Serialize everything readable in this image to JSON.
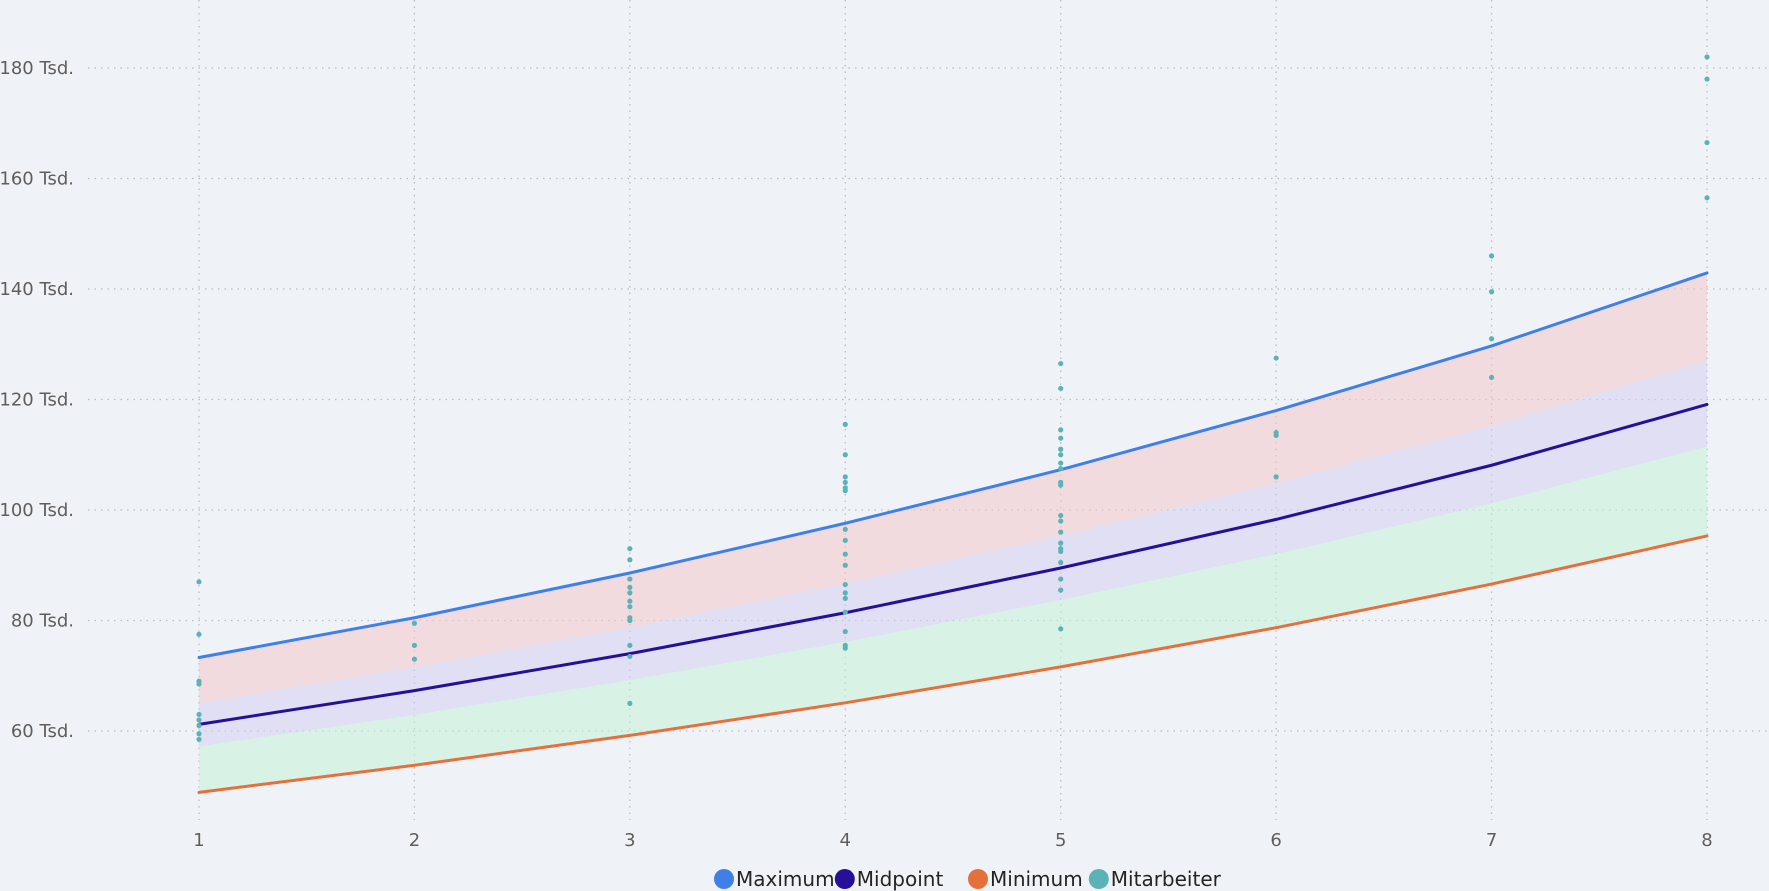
{
  "chart_data": {
    "type": "line",
    "x": [
      1,
      2,
      3,
      4,
      5,
      6,
      7,
      8
    ],
    "xlim": [
      0.5,
      8.3
    ],
    "ylim": [
      42000,
      190000
    ],
    "yticks": [
      60000,
      80000,
      100000,
      120000,
      140000,
      160000,
      180000
    ],
    "ytick_labels": [
      "60 Tsd.",
      "80 Tsd.",
      "100 Tsd.",
      "120 Tsd.",
      "140 Tsd.",
      "160 Tsd.",
      "180 Tsd."
    ],
    "xtick_labels": [
      "1",
      "2",
      "3",
      "4",
      "5",
      "6",
      "7",
      "8"
    ],
    "grid": true,
    "legend_position": "bottom-center",
    "series": [
      {
        "name": "Maximum",
        "kind": "line",
        "color": "#3f80e7",
        "values": [
          73300,
          80500,
          88600,
          97600,
          107300,
          118000,
          129700,
          142900
        ]
      },
      {
        "name": "Midpoint",
        "kind": "line",
        "color": "#260f99",
        "values": [
          61200,
          67300,
          74000,
          81400,
          89500,
          98300,
          108100,
          119100
        ]
      },
      {
        "name": "Minimum",
        "kind": "line",
        "color": "#e4703c",
        "values": [
          48900,
          53800,
          59200,
          65100,
          71600,
          78700,
          86600,
          95300
        ]
      },
      {
        "name": "Mitarbeiter",
        "kind": "scatter",
        "color": "#5cb3b7",
        "points": [
          [
            1,
            87000
          ],
          [
            1,
            77500
          ],
          [
            1,
            69000
          ],
          [
            1,
            68500
          ],
          [
            1,
            63000
          ],
          [
            1,
            62000
          ],
          [
            1,
            61000
          ],
          [
            1,
            59500
          ],
          [
            1,
            58500
          ],
          [
            2,
            79500
          ],
          [
            2,
            75500
          ],
          [
            2,
            73000
          ],
          [
            3,
            93000
          ],
          [
            3,
            91000
          ],
          [
            3,
            87500
          ],
          [
            3,
            86000
          ],
          [
            3,
            85000
          ],
          [
            3,
            83500
          ],
          [
            3,
            82500
          ],
          [
            3,
            80500
          ],
          [
            3,
            80000
          ],
          [
            3,
            75500
          ],
          [
            3,
            73500
          ],
          [
            3,
            65000
          ],
          [
            4,
            115500
          ],
          [
            4,
            110000
          ],
          [
            4,
            106000
          ],
          [
            4,
            105000
          ],
          [
            4,
            104000
          ],
          [
            4,
            103500
          ],
          [
            4,
            96500
          ],
          [
            4,
            94500
          ],
          [
            4,
            92000
          ],
          [
            4,
            90000
          ],
          [
            4,
            86500
          ],
          [
            4,
            85000
          ],
          [
            4,
            84000
          ],
          [
            4,
            81500
          ],
          [
            4,
            78000
          ],
          [
            4,
            75500
          ],
          [
            4,
            75000
          ],
          [
            5,
            126500
          ],
          [
            5,
            122000
          ],
          [
            5,
            114500
          ],
          [
            5,
            113000
          ],
          [
            5,
            111000
          ],
          [
            5,
            110000
          ],
          [
            5,
            108500
          ],
          [
            5,
            107500
          ],
          [
            5,
            105000
          ],
          [
            5,
            104500
          ],
          [
            5,
            99000
          ],
          [
            5,
            98000
          ],
          [
            5,
            96000
          ],
          [
            5,
            94000
          ],
          [
            5,
            93000
          ],
          [
            5,
            92500
          ],
          [
            5,
            90500
          ],
          [
            5,
            87500
          ],
          [
            5,
            85500
          ],
          [
            5,
            78500
          ],
          [
            6,
            127500
          ],
          [
            6,
            114000
          ],
          [
            6,
            113500
          ],
          [
            6,
            106000
          ],
          [
            7,
            146000
          ],
          [
            7,
            139500
          ],
          [
            7,
            131000
          ],
          [
            7,
            124000
          ],
          [
            8,
            182000
          ],
          [
            8,
            178000
          ],
          [
            8,
            166500
          ],
          [
            8,
            156500
          ]
        ]
      }
    ],
    "bands": [
      {
        "color": "#f3c6c8",
        "upper": [
          73300,
          80500,
          88600,
          97600,
          107300,
          118000,
          129700,
          142900
        ],
        "lower": [
          65000,
          71500,
          78700,
          86700,
          95300,
          104800,
          115200,
          127000
        ]
      },
      {
        "color": "#d4cdf0",
        "upper": [
          65000,
          71500,
          78700,
          86700,
          95300,
          104800,
          115200,
          127000
        ],
        "lower": [
          57200,
          62900,
          69200,
          76100,
          83700,
          92000,
          101200,
          111500
        ]
      },
      {
        "color": "#c5f2d5",
        "upper": [
          57200,
          62900,
          69200,
          76100,
          83700,
          92000,
          101200,
          111500
        ],
        "lower": [
          48900,
          53800,
          59200,
          65100,
          71600,
          78700,
          86600,
          95300
        ]
      }
    ]
  }
}
